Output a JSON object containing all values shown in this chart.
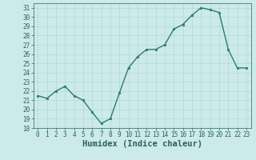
{
  "x": [
    0,
    1,
    2,
    3,
    4,
    5,
    6,
    7,
    8,
    9,
    10,
    11,
    12,
    13,
    14,
    15,
    16,
    17,
    18,
    19,
    20,
    21,
    22,
    23
  ],
  "y": [
    21.5,
    21.2,
    22.0,
    22.5,
    21.5,
    21.0,
    19.7,
    18.5,
    19.0,
    21.8,
    24.5,
    25.7,
    26.5,
    26.5,
    27.0,
    28.7,
    29.2,
    30.2,
    31.0,
    30.8,
    30.5,
    26.5,
    24.5,
    24.5
  ],
  "line_color": "#2d7a6e",
  "marker": "o",
  "marker_size": 1.8,
  "line_width": 1.0,
  "xlabel": "Humidex (Indice chaleur)",
  "ylim": [
    18,
    31.5
  ],
  "xlim": [
    -0.5,
    23.5
  ],
  "yticks": [
    18,
    19,
    20,
    21,
    22,
    23,
    24,
    25,
    26,
    27,
    28,
    29,
    30,
    31
  ],
  "xticks": [
    0,
    1,
    2,
    3,
    4,
    5,
    6,
    7,
    8,
    9,
    10,
    11,
    12,
    13,
    14,
    15,
    16,
    17,
    18,
    19,
    20,
    21,
    22,
    23
  ],
  "bg_color": "#cceaea",
  "grid_color": "#b0d8d8",
  "tick_fontsize": 5.5,
  "xlabel_fontsize": 7.5,
  "tick_color": "#2d6060",
  "xlabel_color": "#2d6060",
  "spine_color": "#2d6060"
}
